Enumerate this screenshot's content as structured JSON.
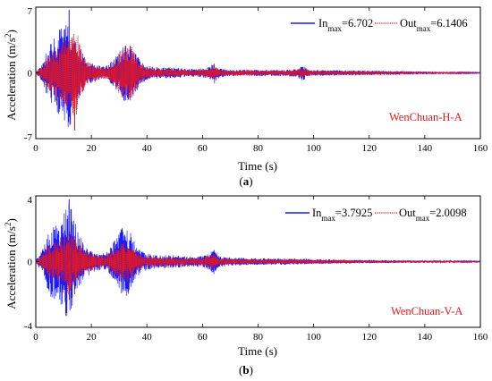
{
  "chart_data": [
    {
      "type": "line",
      "panel": "(a)",
      "panel_letter": "a",
      "xlabel": "Time (s)",
      "ylabel": "Acceleration (m/s",
      "ylabel_sup": "2",
      "ylabel_close": ")",
      "xlim": [
        0,
        160
      ],
      "ylim": [
        -7,
        7
      ],
      "xticks": [
        0,
        20,
        40,
        60,
        80,
        100,
        120,
        140,
        160
      ],
      "yticks": [
        -7,
        0,
        7
      ],
      "annotation": "WenChuan-H-A",
      "series": [
        {
          "legend_main": "In",
          "legend_sub": "max",
          "legend_value": "=6.702",
          "color": "#1a1aff",
          "style": "solid",
          "envelope": [
            [
              0,
              0.1
            ],
            [
              2,
              0.8
            ],
            [
              4,
              2.6
            ],
            [
              6,
              3.6
            ],
            [
              8,
              4.6
            ],
            [
              10,
              4.8
            ],
            [
              12,
              6.702
            ],
            [
              14,
              3.6
            ],
            [
              16,
              2.7
            ],
            [
              18,
              1.5
            ],
            [
              20,
              1.1
            ],
            [
              22,
              0.9
            ],
            [
              24,
              0.7
            ],
            [
              26,
              0.8
            ],
            [
              28,
              1.5
            ],
            [
              30,
              2.2
            ],
            [
              32,
              3.3
            ],
            [
              34,
              3.0
            ],
            [
              36,
              2.1
            ],
            [
              38,
              1.2
            ],
            [
              40,
              0.8
            ],
            [
              45,
              0.6
            ],
            [
              50,
              0.6
            ],
            [
              55,
              0.4
            ],
            [
              60,
              0.5
            ],
            [
              63,
              0.7
            ],
            [
              64,
              1.3
            ],
            [
              66,
              0.5
            ],
            [
              70,
              0.35
            ],
            [
              80,
              0.35
            ],
            [
              90,
              0.35
            ],
            [
              94,
              0.5
            ],
            [
              96,
              0.9
            ],
            [
              98,
              0.35
            ],
            [
              100,
              0.3
            ],
            [
              110,
              0.3
            ],
            [
              120,
              0.25
            ],
            [
              130,
              0.2
            ],
            [
              140,
              0.15
            ],
            [
              150,
              0.1
            ],
            [
              160,
              0.05
            ]
          ]
        },
        {
          "legend_main": "Out",
          "legend_sub": "max",
          "legend_value": "=6.1406",
          "color": "#e8171c",
          "style": "dotted",
          "envelope": [
            [
              0,
              0.05
            ],
            [
              2,
              0.6
            ],
            [
              4,
              1.8
            ],
            [
              6,
              2.2
            ],
            [
              8,
              2.8
            ],
            [
              10,
              3.4
            ],
            [
              12,
              4.2
            ],
            [
              13,
              4.4
            ],
            [
              14,
              6.1406
            ],
            [
              16,
              2.6
            ],
            [
              18,
              1.4
            ],
            [
              20,
              1.0
            ],
            [
              22,
              0.8
            ],
            [
              24,
              0.6
            ],
            [
              26,
              0.7
            ],
            [
              28,
              1.3
            ],
            [
              30,
              2.2
            ],
            [
              32,
              3.0
            ],
            [
              34,
              3.1
            ],
            [
              36,
              2.0
            ],
            [
              38,
              1.0
            ],
            [
              40,
              0.7
            ],
            [
              45,
              0.5
            ],
            [
              50,
              0.45
            ],
            [
              55,
              0.35
            ],
            [
              60,
              0.4
            ],
            [
              64,
              0.8
            ],
            [
              66,
              0.4
            ],
            [
              70,
              0.3
            ],
            [
              80,
              0.3
            ],
            [
              90,
              0.3
            ],
            [
              96,
              0.5
            ],
            [
              100,
              0.25
            ],
            [
              110,
              0.2
            ],
            [
              120,
              0.2
            ],
            [
              130,
              0.15
            ],
            [
              140,
              0.1
            ],
            [
              150,
              0.08
            ],
            [
              160,
              0.03
            ]
          ]
        }
      ]
    },
    {
      "type": "line",
      "panel": "(b)",
      "panel_letter": "b",
      "xlabel": "Time (s)",
      "ylabel": "Acceleration (m/s",
      "ylabel_sup": "2",
      "ylabel_close": ")",
      "xlim": [
        0,
        160
      ],
      "ylim": [
        -4,
        4
      ],
      "xticks": [
        0,
        20,
        40,
        60,
        80,
        100,
        120,
        140,
        160
      ],
      "yticks": [
        -4,
        0,
        4
      ],
      "annotation": "WenChuan-V-A",
      "series": [
        {
          "legend_main": "In",
          "legend_sub": "max",
          "legend_value": "=3.7925",
          "color": "#1a1aff",
          "style": "solid",
          "envelope": [
            [
              0,
              0.1
            ],
            [
              2,
              0.6
            ],
            [
              4,
              1.6
            ],
            [
              6,
              2.4
            ],
            [
              8,
              2.2
            ],
            [
              10,
              3.0
            ],
            [
              12,
              3.7925
            ],
            [
              14,
              2.5
            ],
            [
              16,
              1.6
            ],
            [
              18,
              1.0
            ],
            [
              20,
              0.7
            ],
            [
              22,
              0.6
            ],
            [
              24,
              0.5
            ],
            [
              26,
              0.6
            ],
            [
              28,
              1.2
            ],
            [
              30,
              1.8
            ],
            [
              32,
              2.4
            ],
            [
              34,
              1.8
            ],
            [
              36,
              1.0
            ],
            [
              38,
              0.7
            ],
            [
              40,
              0.5
            ],
            [
              45,
              0.4
            ],
            [
              50,
              0.4
            ],
            [
              55,
              0.3
            ],
            [
              60,
              0.35
            ],
            [
              62,
              0.45
            ],
            [
              64,
              0.8
            ],
            [
              66,
              0.35
            ],
            [
              70,
              0.25
            ],
            [
              80,
              0.2
            ],
            [
              90,
              0.2
            ],
            [
              100,
              0.15
            ],
            [
              110,
              0.12
            ],
            [
              120,
              0.1
            ],
            [
              130,
              0.08
            ],
            [
              140,
              0.07
            ],
            [
              150,
              0.05
            ],
            [
              160,
              0.03
            ]
          ]
        },
        {
          "legend_main": "Out",
          "legend_sub": "max",
          "legend_value": "=2.0098",
          "color": "#e8171c",
          "style": "dotted",
          "envelope": [
            [
              0,
              0.05
            ],
            [
              2,
              0.4
            ],
            [
              4,
              0.9
            ],
            [
              6,
              1.2
            ],
            [
              8,
              1.3
            ],
            [
              10,
              1.6
            ],
            [
              12,
              2.0098
            ],
            [
              14,
              1.5
            ],
            [
              16,
              1.0
            ],
            [
              18,
              0.7
            ],
            [
              20,
              0.5
            ],
            [
              22,
              0.4
            ],
            [
              24,
              0.35
            ],
            [
              26,
              0.4
            ],
            [
              28,
              0.8
            ],
            [
              30,
              1.1
            ],
            [
              32,
              1.4
            ],
            [
              34,
              1.1
            ],
            [
              36,
              0.7
            ],
            [
              38,
              0.45
            ],
            [
              40,
              0.35
            ],
            [
              45,
              0.3
            ],
            [
              50,
              0.3
            ],
            [
              55,
              0.22
            ],
            [
              60,
              0.25
            ],
            [
              64,
              0.5
            ],
            [
              66,
              0.25
            ],
            [
              70,
              0.18
            ],
            [
              80,
              0.15
            ],
            [
              90,
              0.15
            ],
            [
              100,
              0.12
            ],
            [
              110,
              0.1
            ],
            [
              120,
              0.08
            ],
            [
              130,
              0.06
            ],
            [
              140,
              0.05
            ],
            [
              150,
              0.04
            ],
            [
              160,
              0.02
            ]
          ]
        }
      ]
    }
  ]
}
